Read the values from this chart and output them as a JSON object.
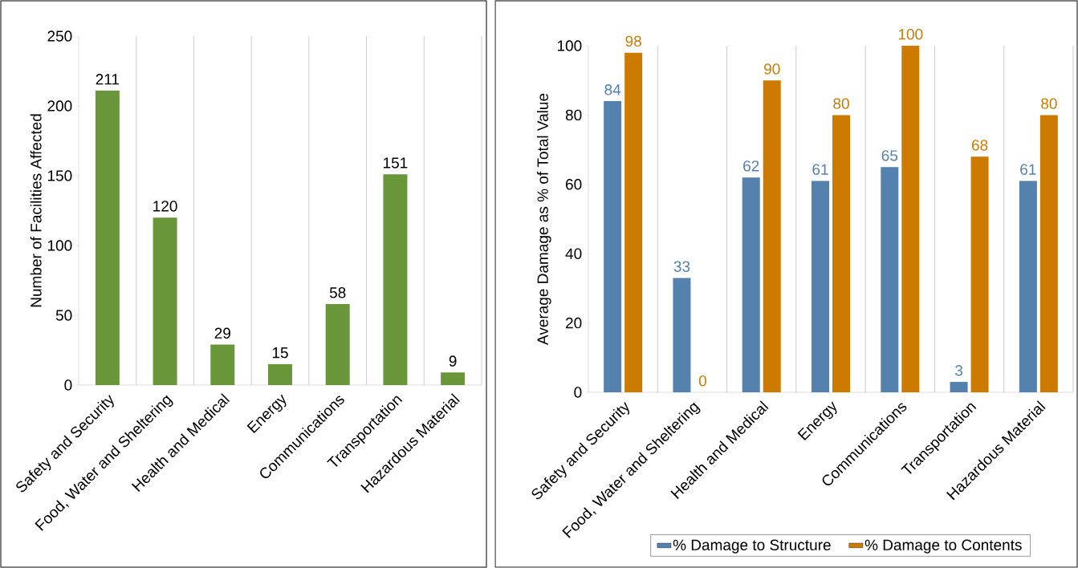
{
  "chart_data": [
    {
      "type": "bar",
      "categories": [
        "Safety and Security",
        "Food, Water and Sheltering",
        "Health and Medical",
        "Energy",
        "Communications",
        "Transportation",
        "Hazardous Material"
      ],
      "values": [
        211,
        120,
        29,
        15,
        58,
        151,
        9
      ],
      "color": "#6a963a",
      "ylabel": "Number of Facilities Affected",
      "ylim": [
        0,
        250
      ],
      "yticks": [
        0,
        50,
        100,
        150,
        200,
        250
      ],
      "data_labels": true,
      "grid": "x"
    },
    {
      "type": "bar",
      "categories": [
        "Safety and Security",
        "Food, Water and Sheltering",
        "Health and Medical",
        "Energy",
        "Communications",
        "Transportation",
        "Hazardous Material"
      ],
      "series": [
        {
          "name": "% Damage to Structure",
          "color": "#5481ad",
          "values": [
            84,
            33,
            62,
            61,
            65,
            3,
            61
          ]
        },
        {
          "name": "% Damage to Contents",
          "color": "#cc7a00",
          "values": [
            98,
            0,
            90,
            80,
            100,
            68,
            80
          ]
        }
      ],
      "ylabel": "Average Damage as % of Total Value",
      "ylim": [
        0,
        100
      ],
      "yticks": [
        0,
        20,
        40,
        60,
        80,
        100
      ],
      "data_labels": true,
      "grid": "x",
      "legend": "bottom"
    }
  ]
}
